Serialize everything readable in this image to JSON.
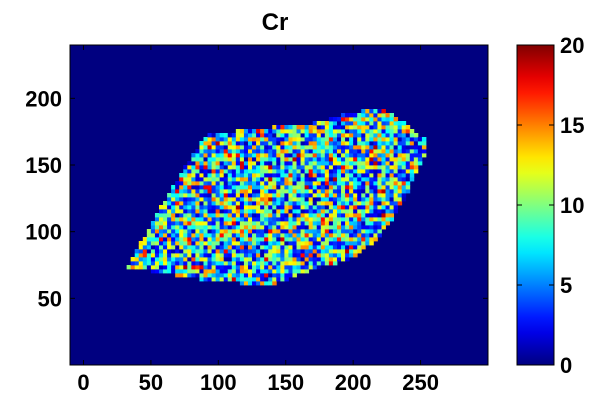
{
  "chart_data": {
    "type": "heatmap",
    "title": "Cr",
    "xlabel": "",
    "ylabel": "",
    "xlim": [
      -10,
      300
    ],
    "ylim": [
      0,
      240
    ],
    "x_ticks": [
      0,
      50,
      100,
      150,
      200,
      250
    ],
    "y_ticks": [
      50,
      100,
      150,
      200
    ],
    "colorbar": {
      "range": [
        0,
        20
      ],
      "ticks": [
        0,
        5,
        10,
        15,
        20
      ],
      "colormap": "jet"
    },
    "background_value": 0,
    "sample_region": {
      "shape_vertices": [
        [
          33,
          73
        ],
        [
          52,
          110
        ],
        [
          76,
          150
        ],
        [
          90,
          172
        ],
        [
          130,
          178
        ],
        [
          165,
          180
        ],
        [
          200,
          190
        ],
        [
          222,
          192
        ],
        [
          240,
          180
        ],
        [
          255,
          168
        ],
        [
          252,
          155
        ],
        [
          245,
          140
        ],
        [
          238,
          125
        ],
        [
          228,
          108
        ],
        [
          218,
          95
        ],
        [
          200,
          80
        ],
        [
          170,
          72
        ],
        [
          140,
          60
        ],
        [
          110,
          62
        ],
        [
          80,
          65
        ],
        [
          55,
          70
        ]
      ],
      "value_range": [
        3,
        16
      ],
      "typical_value": 8
    },
    "colors": {
      "background": "#1a2d66",
      "axis": "#000000"
    }
  }
}
